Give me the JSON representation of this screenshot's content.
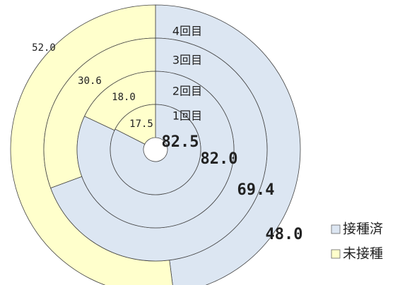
{
  "chart_data": {
    "type": "donut",
    "categories": [
      "接種済",
      "未接種"
    ],
    "colors": [
      "#dce6f2",
      "#ffffcc"
    ],
    "rings": [
      {
        "name": "1回目",
        "values": [
          82.5,
          17.5
        ],
        "value_labels": [
          "82.5",
          "17.5"
        ]
      },
      {
        "name": "2回目",
        "values": [
          82.0,
          18.0
        ],
        "value_labels": [
          "82.0",
          "18.0"
        ]
      },
      {
        "name": "3回目",
        "values": [
          69.4,
          30.6
        ],
        "value_labels": [
          "69.4",
          "30.6"
        ]
      },
      {
        "name": "4回目",
        "values": [
          48.0,
          52.0
        ],
        "value_labels": [
          "48.0",
          "52.0"
        ]
      }
    ],
    "legend": "right"
  }
}
